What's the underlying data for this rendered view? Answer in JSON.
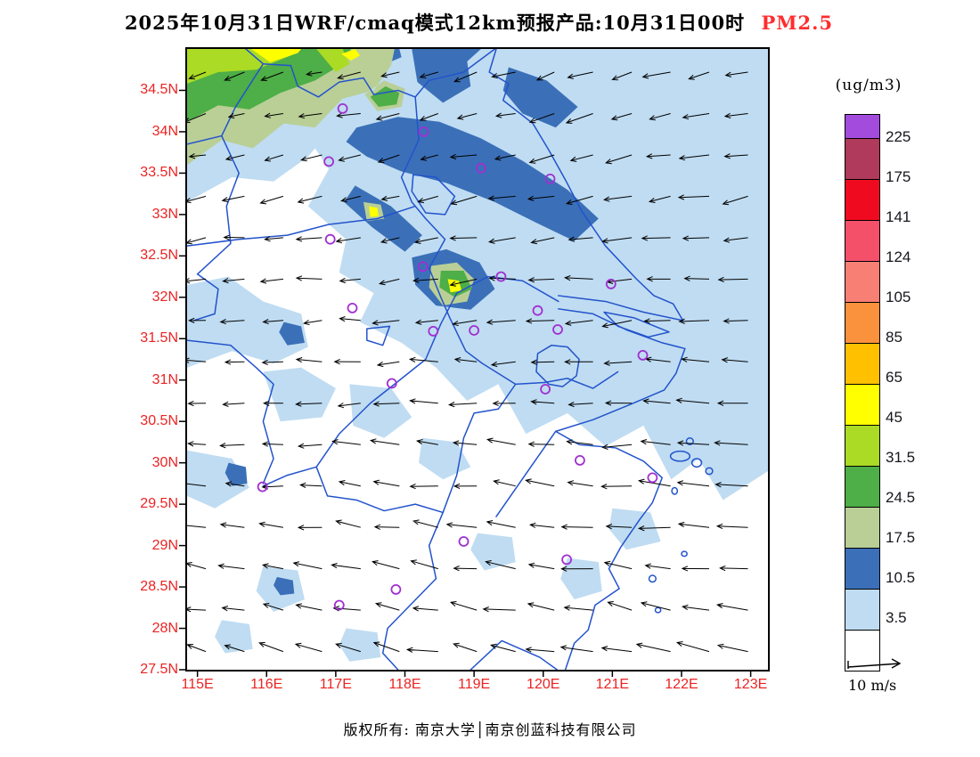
{
  "title": {
    "text": "2025年10月31日WRF/cmaq模式12km预报产品:10月31日00时",
    "highlight": "PM2.5"
  },
  "colors": {
    "title": "#000000",
    "highlight": "#FF2D2D",
    "axis_label": "#EE2222",
    "boundary": "#2353CC",
    "station": "#A030D0",
    "arrow": "#000000",
    "frame": "#000000"
  },
  "axes": {
    "lat_labels": [
      "34.5N",
      "34N",
      "33.5N",
      "33N",
      "32.5N",
      "32N",
      "31.5N",
      "31N",
      "30.5N",
      "30N",
      "29.5N",
      "29N",
      "28.5N",
      "28N",
      "27.5N"
    ],
    "lon_labels": [
      "115E",
      "116E",
      "117E",
      "118E",
      "119E",
      "120E",
      "121E",
      "122E",
      "123E"
    ]
  },
  "colorbar": {
    "units": "(ug/m3)",
    "tick_labels": [
      "225",
      "175",
      "141",
      "124",
      "105",
      "85",
      "65",
      "45",
      "31.5",
      "24.5",
      "17.5",
      "10.5",
      "3.5"
    ],
    "cell_colors_top_to_bottom": [
      "#A34BDD",
      "#B03A5C",
      "#F00A20",
      "#F4506A",
      "#F87F74",
      "#FA913C",
      "#FFC000",
      "#FFFF00",
      "#ABDB24",
      "#4EAE47",
      "#B9CF96",
      "#3B70B8",
      "#BFDCF2",
      "#FFFFFF"
    ]
  },
  "wind_legend": {
    "label": "10 m/s"
  },
  "footer": {
    "text": "版权所有: 南京大学│南京创蓝科技有限公司"
  },
  "chart_data": {
    "type": "heatmap",
    "variable": "PM2.5 surface concentration forecast (WRF/CMAQ 12km)",
    "units": "ug/m3",
    "valid_time": "10月31日00时",
    "lon_range": [
      114.85,
      123.25
    ],
    "lat_range": [
      27.5,
      35.0
    ],
    "contour_levels": [
      3.5,
      10.5,
      17.5,
      24.5,
      31.5,
      45,
      65,
      85,
      105,
      124,
      141,
      175,
      225
    ],
    "palette": {
      "c0": "#FFFFFF",
      "c1": "#BFDCF2",
      "c2": "#3B70B8",
      "c3": "#B9CF96",
      "c4": "#4EAE47",
      "c5": "#ABDB24",
      "c6": "#FFFF00",
      "c7": "#FFC000",
      "c8": "#FA913C",
      "c9": "#F87F74",
      "c10": "#F4506A",
      "c11": "#F00A20",
      "c12": "#B03A5C",
      "c13": "#A34BDD"
    },
    "shading_summary": [
      "Values 24.5-65 ug/m3 (green to yellow) over the northwest corner near 115-117.8E / 34-35N",
      "Band of 10.5-17.5 ug/m3 (dark blue) from about 117.5E,34N southeast to 120.8E,33N and near Nanjing 118.2-119.3E,32-32.5N",
      "Widespread 3.5-10.5 ug/m3 (light blue) over the northern and eastern half of the domain",
      "Below 3.5 ug/m3 (white) over most of the south and southeast"
    ],
    "stations_lon_lat": [
      [
        117.1,
        34.28
      ],
      [
        118.27,
        34.0
      ],
      [
        116.9,
        33.64
      ],
      [
        119.1,
        33.56
      ],
      [
        120.1,
        33.43
      ],
      [
        116.92,
        32.7
      ],
      [
        118.26,
        32.37
      ],
      [
        119.39,
        32.25
      ],
      [
        120.98,
        32.16
      ],
      [
        119.92,
        31.84
      ],
      [
        117.24,
        31.87
      ],
      [
        118.41,
        31.59
      ],
      [
        120.21,
        31.61
      ],
      [
        121.44,
        31.3
      ],
      [
        117.81,
        30.96
      ],
      [
        120.03,
        30.89
      ],
      [
        120.53,
        30.03
      ],
      [
        121.58,
        29.82
      ],
      [
        115.94,
        29.71
      ],
      [
        118.85,
        29.05
      ],
      [
        120.34,
        28.83
      ],
      [
        117.87,
        28.47
      ],
      [
        117.05,
        28.28
      ],
      [
        119.0,
        31.6
      ]
    ],
    "wind": {
      "cols": 15,
      "rows": 15,
      "lon_start": 115.12,
      "lon_step": 0.56,
      "lat_start": 27.72,
      "lat_step": 0.5,
      "reference_speed_ms": 10,
      "general_direction": "northeasterly flow in the north veering to easterly/southeasterly toward the south"
    }
  }
}
